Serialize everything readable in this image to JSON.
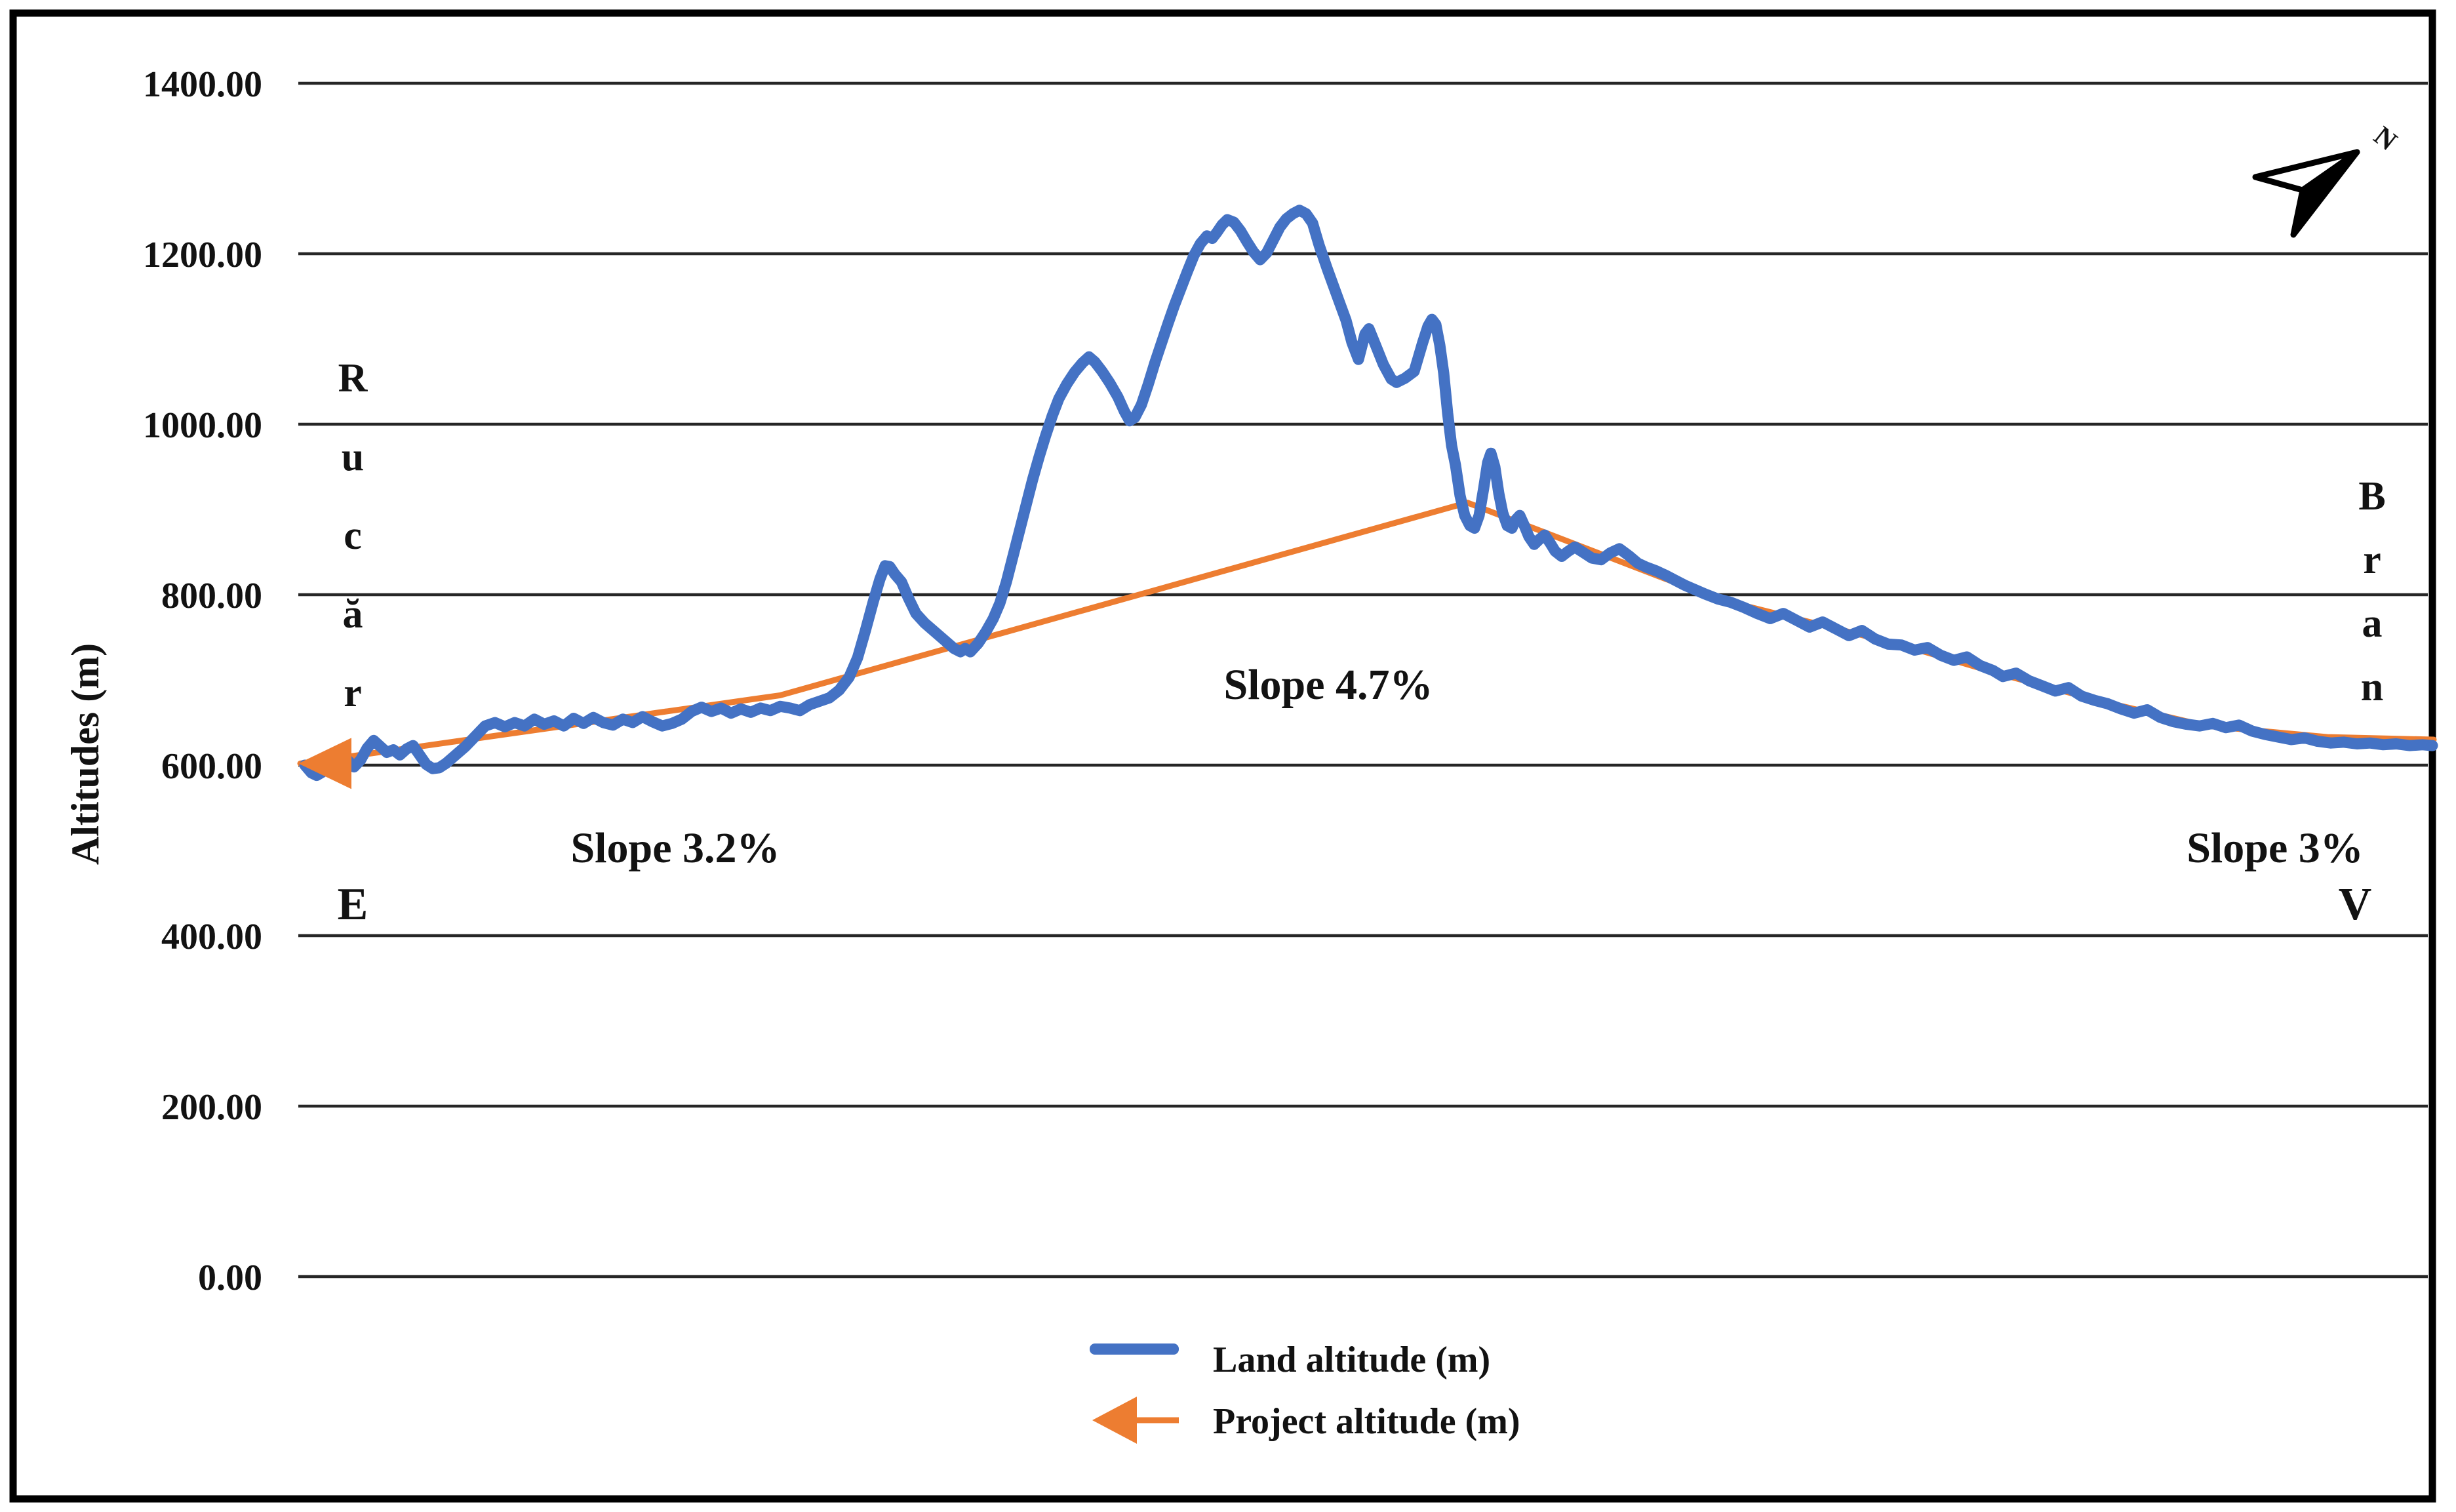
{
  "chart_data": {
    "type": "line",
    "title": "",
    "xlabel": "",
    "ylabel": "Altitudes (m)",
    "ylim": [
      0,
      1400
    ],
    "y_tick_step": 200,
    "grid": "horizontal-only",
    "legend_position": "bottom-center",
    "y_ticks": [
      {
        "value": 1400,
        "label": "1400.00"
      },
      {
        "value": 1200,
        "label": "1200.00"
      },
      {
        "value": 1000,
        "label": "1000.00"
      },
      {
        "value": 800,
        "label": "800.00"
      },
      {
        "value": 600,
        "label": "600.00"
      },
      {
        "value": 400,
        "label": "400.00"
      },
      {
        "value": 200,
        "label": "200.00"
      },
      {
        "value": 0,
        "label": "0.00"
      }
    ],
    "x_axis_note": "no x-axis tick labels shown; x stored as horizontal chart position (px)",
    "series": [
      {
        "name": "Land altitude (m)",
        "color": "#4472C4",
        "style": "thick-solid",
        "points": [
          [
            465,
            600
          ],
          [
            475,
            591
          ],
          [
            483,
            588
          ],
          [
            492,
            592
          ],
          [
            500,
            600
          ],
          [
            510,
            607
          ],
          [
            520,
            612
          ],
          [
            530,
            606
          ],
          [
            540,
            598
          ],
          [
            550,
            606
          ],
          [
            560,
            620
          ],
          [
            570,
            629
          ],
          [
            580,
            622
          ],
          [
            590,
            615
          ],
          [
            600,
            618
          ],
          [
            610,
            612
          ],
          [
            620,
            619
          ],
          [
            630,
            623
          ],
          [
            640,
            612
          ],
          [
            650,
            601
          ],
          [
            660,
            596
          ],
          [
            670,
            597
          ],
          [
            680,
            602
          ],
          [
            695,
            612
          ],
          [
            710,
            622
          ],
          [
            725,
            634
          ],
          [
            740,
            646
          ],
          [
            755,
            650
          ],
          [
            770,
            645
          ],
          [
            785,
            650
          ],
          [
            800,
            646
          ],
          [
            815,
            654
          ],
          [
            830,
            648
          ],
          [
            845,
            652
          ],
          [
            860,
            646
          ],
          [
            875,
            655
          ],
          [
            890,
            649
          ],
          [
            905,
            656
          ],
          [
            920,
            650
          ],
          [
            935,
            647
          ],
          [
            950,
            654
          ],
          [
            965,
            650
          ],
          [
            980,
            657
          ],
          [
            995,
            651
          ],
          [
            1010,
            646
          ],
          [
            1025,
            649
          ],
          [
            1040,
            654
          ],
          [
            1055,
            663
          ],
          [
            1070,
            668
          ],
          [
            1085,
            663
          ],
          [
            1100,
            667
          ],
          [
            1115,
            661
          ],
          [
            1130,
            666
          ],
          [
            1145,
            662
          ],
          [
            1160,
            667
          ],
          [
            1175,
            664
          ],
          [
            1190,
            669
          ],
          [
            1205,
            667
          ],
          [
            1220,
            664
          ],
          [
            1235,
            671
          ],
          [
            1250,
            675
          ],
          [
            1265,
            679
          ],
          [
            1280,
            688
          ],
          [
            1295,
            703
          ],
          [
            1308,
            726
          ],
          [
            1320,
            758
          ],
          [
            1332,
            792
          ],
          [
            1342,
            818
          ],
          [
            1350,
            834
          ],
          [
            1357,
            833
          ],
          [
            1365,
            824
          ],
          [
            1375,
            815
          ],
          [
            1385,
            797
          ],
          [
            1397,
            778
          ],
          [
            1410,
            767
          ],
          [
            1425,
            757
          ],
          [
            1440,
            747
          ],
          [
            1455,
            737
          ],
          [
            1465,
            733
          ],
          [
            1472,
            737
          ],
          [
            1480,
            733
          ],
          [
            1492,
            743
          ],
          [
            1504,
            757
          ],
          [
            1515,
            772
          ],
          [
            1525,
            790
          ],
          [
            1535,
            815
          ],
          [
            1545,
            845
          ],
          [
            1555,
            875
          ],
          [
            1565,
            905
          ],
          [
            1575,
            935
          ],
          [
            1585,
            962
          ],
          [
            1595,
            987
          ],
          [
            1605,
            1010
          ],
          [
            1615,
            1030
          ],
          [
            1627,
            1047
          ],
          [
            1639,
            1061
          ],
          [
            1651,
            1072
          ],
          [
            1661,
            1079
          ],
          [
            1670,
            1073
          ],
          [
            1681,
            1062
          ],
          [
            1693,
            1048
          ],
          [
            1705,
            1032
          ],
          [
            1715,
            1015
          ],
          [
            1723,
            1004
          ],
          [
            1731,
            1008
          ],
          [
            1741,
            1023
          ],
          [
            1751,
            1046
          ],
          [
            1761,
            1071
          ],
          [
            1771,
            1094
          ],
          [
            1781,
            1117
          ],
          [
            1791,
            1139
          ],
          [
            1801,
            1159
          ],
          [
            1811,
            1179
          ],
          [
            1821,
            1198
          ],
          [
            1831,
            1212
          ],
          [
            1841,
            1221
          ],
          [
            1849,
            1218
          ],
          [
            1856,
            1225
          ],
          [
            1864,
            1234
          ],
          [
            1872,
            1240
          ],
          [
            1882,
            1237
          ],
          [
            1892,
            1227
          ],
          [
            1902,
            1214
          ],
          [
            1912,
            1202
          ],
          [
            1922,
            1193
          ],
          [
            1932,
            1201
          ],
          [
            1942,
            1216
          ],
          [
            1952,
            1231
          ],
          [
            1962,
            1241
          ],
          [
            1972,
            1247
          ],
          [
            1982,
            1251
          ],
          [
            1992,
            1247
          ],
          [
            2002,
            1236
          ],
          [
            2012,
            1210
          ],
          [
            2025,
            1181
          ],
          [
            2043,
            1143
          ],
          [
            2053,
            1122
          ],
          [
            2062,
            1096
          ],
          [
            2072,
            1076
          ],
          [
            2082,
            1106
          ],
          [
            2088,
            1112
          ],
          [
            2098,
            1093
          ],
          [
            2110,
            1070
          ],
          [
            2122,
            1053
          ],
          [
            2130,
            1049
          ],
          [
            2143,
            1054
          ],
          [
            2157,
            1062
          ],
          [
            2170,
            1096
          ],
          [
            2178,
            1115
          ],
          [
            2184,
            1123
          ],
          [
            2190,
            1117
          ],
          [
            2196,
            1093
          ],
          [
            2202,
            1060
          ],
          [
            2208,
            1013
          ],
          [
            2214,
            975
          ],
          [
            2220,
            952
          ],
          [
            2227,
            916
          ],
          [
            2234,
            893
          ],
          [
            2242,
            881
          ],
          [
            2249,
            878
          ],
          [
            2256,
            893
          ],
          [
            2263,
            925
          ],
          [
            2269,
            955
          ],
          [
            2274,
            966
          ],
          [
            2280,
            950
          ],
          [
            2286,
            919
          ],
          [
            2292,
            896
          ],
          [
            2299,
            881
          ],
          [
            2306,
            878
          ],
          [
            2312,
            888
          ],
          [
            2318,
            893
          ],
          [
            2325,
            881
          ],
          [
            2332,
            868
          ],
          [
            2340,
            859
          ],
          [
            2348,
            865
          ],
          [
            2356,
            870
          ],
          [
            2364,
            861
          ],
          [
            2372,
            851
          ],
          [
            2382,
            845
          ],
          [
            2392,
            851
          ],
          [
            2402,
            856
          ],
          [
            2414,
            850
          ],
          [
            2428,
            843
          ],
          [
            2442,
            841
          ],
          [
            2456,
            849
          ],
          [
            2470,
            854
          ],
          [
            2484,
            846
          ],
          [
            2498,
            837
          ],
          [
            2512,
            832
          ],
          [
            2526,
            828
          ],
          [
            2540,
            823
          ],
          [
            2555,
            817
          ],
          [
            2570,
            811
          ],
          [
            2585,
            806
          ],
          [
            2600,
            801
          ],
          [
            2620,
            795
          ],
          [
            2640,
            791
          ],
          [
            2660,
            785
          ],
          [
            2680,
            778
          ],
          [
            2700,
            772
          ],
          [
            2720,
            778
          ],
          [
            2740,
            770
          ],
          [
            2760,
            762
          ],
          [
            2780,
            768
          ],
          [
            2800,
            760
          ],
          [
            2820,
            752
          ],
          [
            2840,
            758
          ],
          [
            2860,
            748
          ],
          [
            2880,
            742
          ],
          [
            2900,
            741
          ],
          [
            2920,
            735
          ],
          [
            2940,
            738
          ],
          [
            2960,
            729
          ],
          [
            2980,
            723
          ],
          [
            3000,
            727
          ],
          [
            3020,
            717
          ],
          [
            3040,
            711
          ],
          [
            3055,
            704
          ],
          [
            3075,
            708
          ],
          [
            3095,
            699
          ],
          [
            3115,
            693
          ],
          [
            3135,
            687
          ],
          [
            3155,
            691
          ],
          [
            3175,
            681
          ],
          [
            3195,
            676
          ],
          [
            3215,
            672
          ],
          [
            3235,
            666
          ],
          [
            3255,
            661
          ],
          [
            3275,
            665
          ],
          [
            3295,
            656
          ],
          [
            3315,
            651
          ],
          [
            3335,
            648
          ],
          [
            3355,
            646
          ],
          [
            3375,
            649
          ],
          [
            3395,
            644
          ],
          [
            3415,
            647
          ],
          [
            3435,
            640
          ],
          [
            3455,
            636
          ],
          [
            3475,
            633
          ],
          [
            3495,
            630
          ],
          [
            3515,
            632
          ],
          [
            3535,
            628
          ],
          [
            3555,
            626
          ],
          [
            3575,
            627
          ],
          [
            3595,
            625
          ],
          [
            3615,
            626
          ],
          [
            3635,
            624
          ],
          [
            3655,
            625
          ],
          [
            3675,
            623
          ],
          [
            3695,
            624
          ],
          [
            3710,
            623
          ]
        ]
      },
      {
        "name": "Project altitude (m)",
        "color": "#ED7D31",
        "style": "thin-solid-with-left-arrowhead",
        "points": [
          [
            458,
            602
          ],
          [
            1190,
            682
          ],
          [
            2238,
            908
          ],
          [
            2620,
            795
          ],
          [
            2900,
            741
          ],
          [
            3055,
            706
          ],
          [
            3210,
            674
          ],
          [
            3366,
            646
          ],
          [
            3550,
            633
          ],
          [
            3712,
            630
          ]
        ]
      }
    ],
    "annotations": [
      {
        "id": "slope-left",
        "text": "Slope 3.2%",
        "x": 1030,
        "y": 1315
      },
      {
        "id": "slope-middle",
        "text": "Slope 4.7%",
        "x": 2026,
        "y": 1066
      },
      {
        "id": "slope-right",
        "text": "Slope 3%",
        "x": 3470,
        "y": 1315
      }
    ]
  },
  "labels": {
    "left_place_word": "Rucăr",
    "left_place_letters": [
      "R",
      "u",
      "c",
      "ă",
      "r"
    ],
    "left_end_letter": "E",
    "right_place_word": "Bran",
    "right_place_letters": [
      "B",
      "r",
      "a",
      "n"
    ],
    "right_end_letter": "V"
  },
  "legend": {
    "items": [
      {
        "label": "Land altitude (m)",
        "swatch": "thick-line-swatch",
        "color": "#4472C4"
      },
      {
        "label": "Project altitude (m)",
        "swatch": "left-arrow-swatch",
        "color": "#ED7D31"
      }
    ]
  },
  "north_arrow": {
    "letter": "N"
  },
  "colors": {
    "land_line": "#4472C4",
    "project_line": "#ED7D31",
    "gridline": "#262626",
    "frame": "#000000",
    "text": "#121212",
    "background": "#ffffff"
  }
}
